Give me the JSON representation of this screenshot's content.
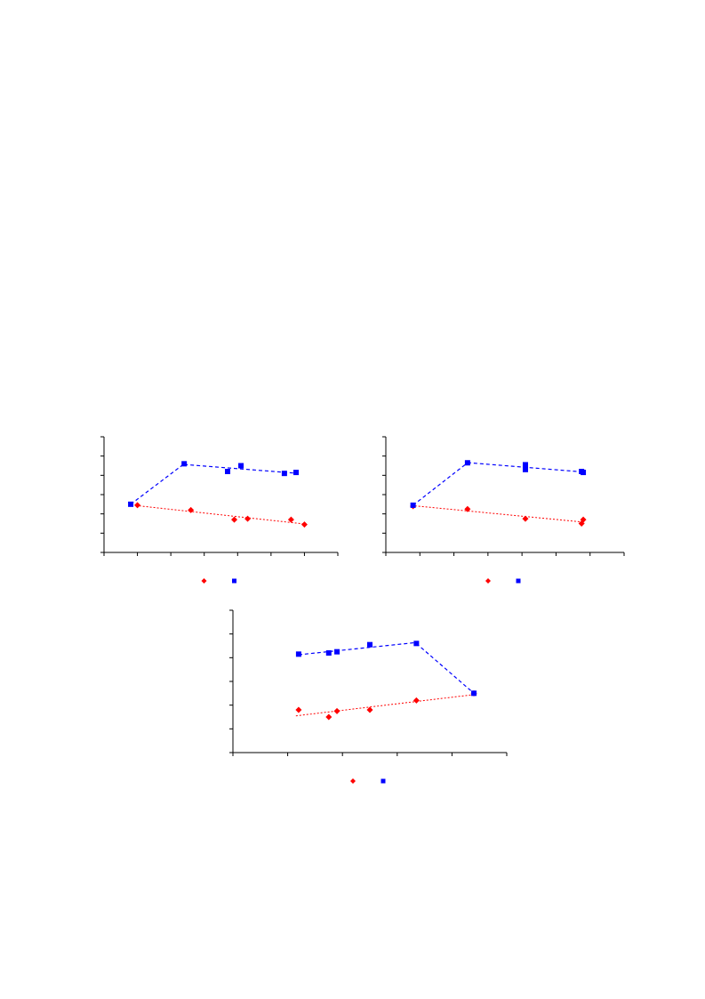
{
  "chart_data": [
    {
      "type": "scatter",
      "xlim": [
        0,
        7
      ],
      "ylim": [
        0,
        6
      ],
      "grid": false,
      "legend_position": "bottom-center",
      "series": [
        {
          "color": "#ff0000",
          "marker": "diamond",
          "trendline": "linear-dotted",
          "points": [
            [
              1.0,
              2.45
            ],
            [
              2.6,
              2.2
            ],
            [
              3.9,
              1.7
            ],
            [
              4.3,
              1.75
            ],
            [
              5.6,
              1.7
            ],
            [
              6.0,
              1.45
            ]
          ]
        },
        {
          "color": "#0000ff",
          "marker": "square",
          "trendline": "piecewise-dashed",
          "points": [
            [
              0.8,
              2.5
            ],
            [
              2.4,
              4.6
            ],
            [
              3.7,
              4.2
            ],
            [
              4.1,
              4.5
            ],
            [
              5.4,
              4.1
            ],
            [
              5.75,
              4.15
            ]
          ],
          "break_x": 2.4
        }
      ]
    },
    {
      "type": "scatter",
      "xlim": [
        0,
        7
      ],
      "ylim": [
        0,
        6
      ],
      "grid": false,
      "legend_position": "bottom-center",
      "series": [
        {
          "color": "#ff0000",
          "marker": "diamond",
          "trendline": "linear-dotted",
          "points": [
            [
              0.8,
              2.4
            ],
            [
              2.4,
              2.25
            ],
            [
              4.1,
              1.75
            ],
            [
              5.75,
              1.5
            ],
            [
              5.8,
              1.7
            ]
          ]
        },
        {
          "color": "#0000ff",
          "marker": "square",
          "trendline": "piecewise-dashed",
          "points": [
            [
              0.8,
              2.45
            ],
            [
              2.4,
              4.65
            ],
            [
              4.1,
              4.55
            ],
            [
              4.1,
              4.3
            ],
            [
              5.75,
              4.2
            ],
            [
              5.8,
              4.15
            ]
          ],
          "break_x": 2.4
        }
      ]
    },
    {
      "type": "scatter",
      "xlim": [
        0,
        5
      ],
      "ylim": [
        0,
        6
      ],
      "grid": false,
      "legend_position": "bottom-center",
      "series": [
        {
          "color": "#ff0000",
          "marker": "diamond",
          "trendline": "linear-dotted",
          "points": [
            [
              1.2,
              1.8
            ],
            [
              1.75,
              1.5
            ],
            [
              1.9,
              1.75
            ],
            [
              2.5,
              1.8
            ],
            [
              3.35,
              2.2
            ],
            [
              4.4,
              2.5
            ]
          ]
        },
        {
          "color": "#0000ff",
          "marker": "square",
          "trendline": "piecewise-dashed",
          "points": [
            [
              1.2,
              4.15
            ],
            [
              1.75,
              4.2
            ],
            [
              1.9,
              4.25
            ],
            [
              2.5,
              4.55
            ],
            [
              3.35,
              4.6
            ],
            [
              4.4,
              2.5
            ]
          ],
          "break_x": 3.35
        }
      ]
    }
  ]
}
